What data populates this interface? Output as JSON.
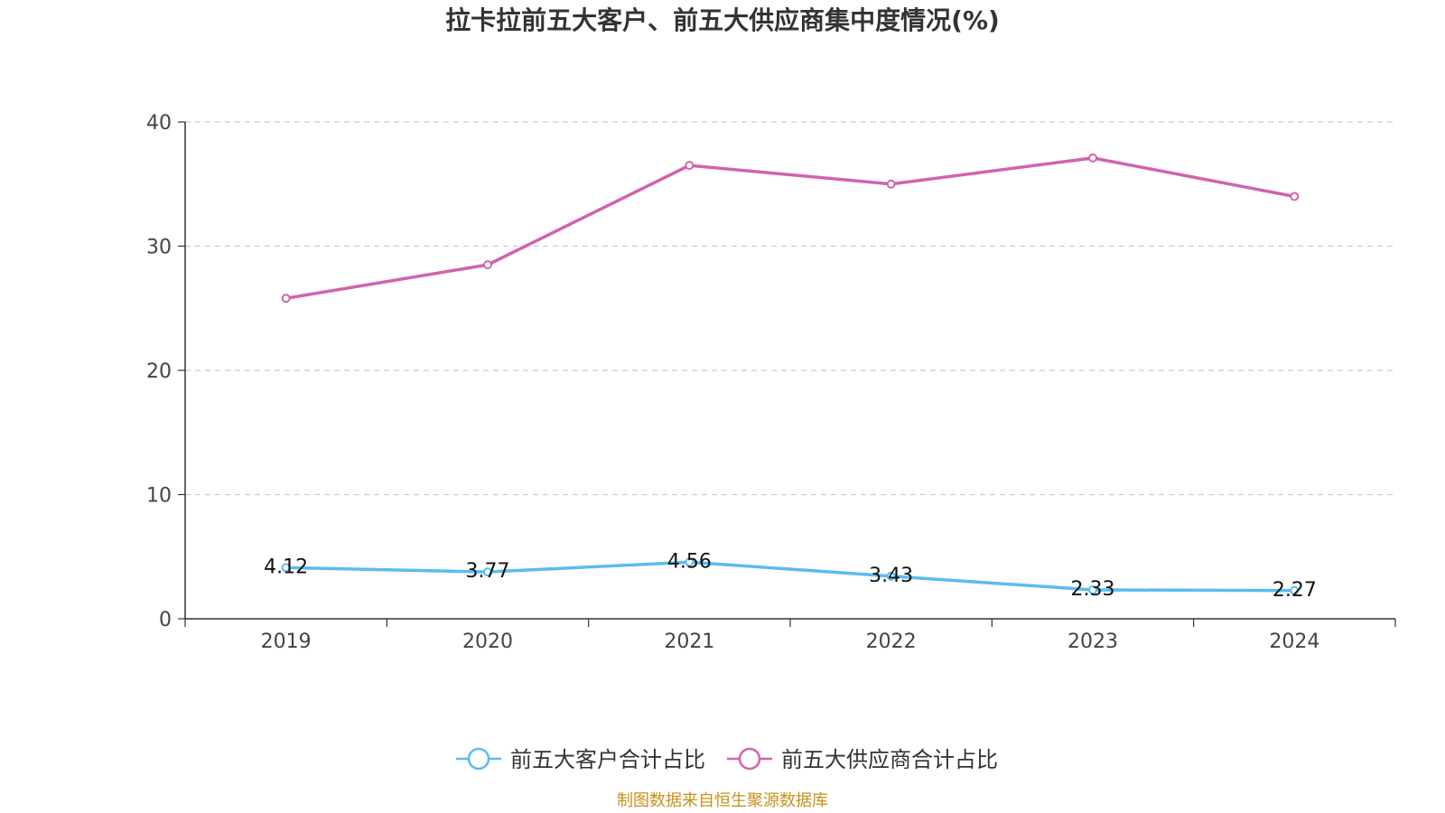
{
  "chart_data": {
    "type": "line",
    "title": "拉卡拉前五大客户、前五大供应商集中度情况(%)",
    "xlabel": "",
    "ylabel": "",
    "categories": [
      "2019",
      "2020",
      "2021",
      "2022",
      "2023",
      "2024"
    ],
    "ylim": [
      0,
      40
    ],
    "yticks": [
      "0",
      "10",
      "20",
      "30",
      "40"
    ],
    "grid": true,
    "legend_position": "bottom",
    "series": [
      {
        "name": "前五大客户合计占比",
        "color": "#5bbcf0",
        "values": [
          4.12,
          3.77,
          4.56,
          3.43,
          2.33,
          2.27
        ],
        "labels": [
          "4.12",
          "3.77",
          "4.56",
          "3.43",
          "2.33",
          "2.27"
        ]
      },
      {
        "name": "前五大供应商合计占比",
        "color": "#d163ad",
        "values": [
          25.8,
          28.5,
          36.5,
          35.0,
          37.1,
          34.0
        ]
      }
    ],
    "source": "制图数据来自恒生聚源数据库",
    "source_color": "#c8901a"
  }
}
